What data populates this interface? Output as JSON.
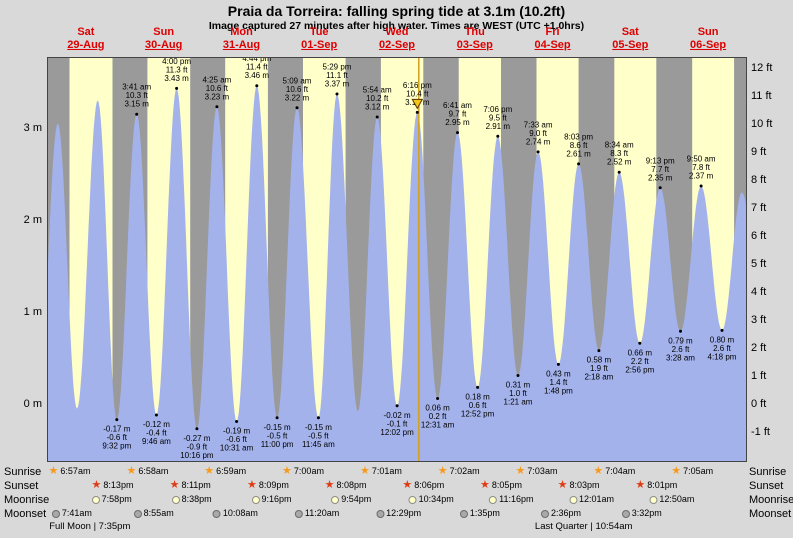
{
  "title": "Praia da Torreira: falling  spring tide at 3.1m (10.2ft)",
  "subtitle": "Image captured 27 minutes after high water. Times are WEST (UTC +1.0hrs)",
  "colors": {
    "background": "#d9d9d9",
    "night_band": "#9a9a9a",
    "day_band": "#ffffca",
    "tide_fill": "#a3b2ea",
    "header_red": "#dd0000",
    "marker_line": "#d4a017",
    "marker_triangle": "#f5c518",
    "sunrise_star": "#f59a1e",
    "sunset_star": "#e03c14",
    "moonrise_dot_bg": "#ffffc8",
    "moonrise_dot_border": "#8c8c8c",
    "moonset_dot_bg": "#a9a9a9",
    "moonset_dot_border": "#6b6b6b"
  },
  "chart_data": {
    "type": "area",
    "title": "Praia da Torreira tide curve",
    "y_axis_left_labels": [
      "3 m",
      "2 m",
      "1 m",
      "0 m"
    ],
    "y_axis_right_labels": [
      "12 ft",
      "11 ft",
      "10 ft",
      "9 ft",
      "8 ft",
      "7 ft",
      "6 ft",
      "5 ft",
      "4 ft",
      "3 ft",
      "2 ft",
      "1 ft",
      "0 ft",
      "-1 ft"
    ],
    "y_range_m": [
      -0.62,
      3.77
    ],
    "days": [
      {
        "name": "Sat",
        "date": "29-Aug"
      },
      {
        "name": "Sun",
        "date": "30-Aug"
      },
      {
        "name": "Mon",
        "date": "31-Aug"
      },
      {
        "name": "Tue",
        "date": "01-Sep"
      },
      {
        "name": "Wed",
        "date": "02-Sep"
      },
      {
        "name": "Thu",
        "date": "03-Sep"
      },
      {
        "name": "Fri",
        "date": "04-Sep"
      },
      {
        "name": "Sat",
        "date": "05-Sep"
      },
      {
        "name": "Sun",
        "date": "06-Sep"
      }
    ],
    "tide_extremes": [
      {
        "day": -1,
        "time": "21:10",
        "height_m": -0.1,
        "type": "low",
        "label_lines": null
      },
      {
        "day": 0,
        "time": "03:20",
        "height_m": 3.05,
        "type": "high",
        "label_lines": null
      },
      {
        "day": 0,
        "time": "09:15",
        "height_m": -0.05,
        "type": "low",
        "label_lines": null
      },
      {
        "day": 0,
        "time": "15:40",
        "height_m": 3.3,
        "type": "high",
        "label_lines": null
      },
      {
        "day": 0,
        "time": "21:32",
        "height_m": -0.17,
        "type": "low",
        "label_lines": [
          "-0.17 m",
          "-0.6 ft",
          "9:32 pm"
        ]
      },
      {
        "day": 1,
        "time": "03:41",
        "height_m": 3.15,
        "type": "high",
        "label_lines": [
          "3:41 am",
          "10.3 ft",
          "3.15 m"
        ]
      },
      {
        "day": 1,
        "time": "09:46",
        "height_m": -0.12,
        "type": "low",
        "label_lines": [
          "-0.12 m",
          "-0.4 ft",
          "9:46 am"
        ]
      },
      {
        "day": 1,
        "time": "16:00",
        "height_m": 3.43,
        "type": "high",
        "label_lines": [
          "4:00 pm",
          "11.3 ft",
          "3.43 m"
        ]
      },
      {
        "day": 1,
        "time": "22:16",
        "height_m": -0.27,
        "type": "low",
        "label_lines": [
          "-0.27 m",
          "-0.9 ft",
          "10:16 pm"
        ]
      },
      {
        "day": 2,
        "time": "04:25",
        "height_m": 3.23,
        "type": "high",
        "label_lines": [
          "4:25 am",
          "10.6 ft",
          "3.23 m"
        ]
      },
      {
        "day": 2,
        "time": "10:31",
        "height_m": -0.19,
        "type": "low",
        "label_lines": [
          "-0.19 m",
          "-0.6 ft",
          "10:31 am"
        ]
      },
      {
        "day": 2,
        "time": "16:44",
        "height_m": 3.46,
        "type": "high",
        "label_lines": [
          "4:44 pm",
          "11.4 ft",
          "3.46 m"
        ]
      },
      {
        "day": 2,
        "time": "23:00",
        "height_m": -0.15,
        "type": "low",
        "label_lines": [
          "-0.15 m",
          "-0.5 ft",
          "11:00 pm"
        ]
      },
      {
        "day": 3,
        "time": "05:09",
        "height_m": 3.22,
        "type": "high",
        "label_lines": [
          "5:09 am",
          "10.6 ft",
          "3.22 m"
        ]
      },
      {
        "day": 3,
        "time": "11:45",
        "height_m": -0.15,
        "type": "low",
        "label_lines": [
          "-0.15 m",
          "-0.5 ft",
          "11:45 am"
        ]
      },
      {
        "day": 3,
        "time": "17:29",
        "height_m": 3.37,
        "type": "high",
        "label_lines": [
          "5:29 pm",
          "11.1 ft",
          "3.37 m"
        ]
      },
      {
        "day": 3,
        "time": "23:55",
        "height_m": -0.08,
        "type": "low",
        "label_lines": null
      },
      {
        "day": 4,
        "time": "05:54",
        "height_m": 3.12,
        "type": "high",
        "label_lines": [
          "5:54 am",
          "10.2 ft",
          "3.12 m"
        ]
      },
      {
        "day": 4,
        "time": "12:02",
        "height_m": -0.02,
        "type": "low",
        "label_lines": [
          "-0.02 m",
          "-0.1 ft",
          "12:02 pm"
        ]
      },
      {
        "day": 4,
        "time": "18:16",
        "height_m": 3.17,
        "type": "high",
        "label_lines": [
          "6:16 pm",
          "10.4 ft",
          "3.17 m"
        ],
        "is_current": true
      },
      {
        "day": 5,
        "time": "00:31",
        "height_m": 0.06,
        "type": "low",
        "label_lines": [
          "0.06 m",
          "0.2 ft",
          "12:31 am"
        ]
      },
      {
        "day": 5,
        "time": "06:41",
        "height_m": 2.95,
        "type": "high",
        "label_lines": [
          "6:41 am",
          "9.7 ft",
          "2.95 m"
        ]
      },
      {
        "day": 5,
        "time": "12:52",
        "height_m": 0.18,
        "type": "low",
        "label_lines": [
          "0.18 m",
          "0.6 ft",
          "12:52 pm"
        ]
      },
      {
        "day": 5,
        "time": "19:06",
        "height_m": 2.91,
        "type": "high",
        "label_lines": [
          "7:06 pm",
          "9.5 ft",
          "2.91 m"
        ]
      },
      {
        "day": 6,
        "time": "01:21",
        "height_m": 0.31,
        "type": "low",
        "label_lines": [
          "0.31 m",
          "1.0 ft",
          "1:21 am"
        ]
      },
      {
        "day": 6,
        "time": "07:33",
        "height_m": 2.74,
        "type": "high",
        "label_lines": [
          "7:33 am",
          "9.0 ft",
          "2.74 m"
        ]
      },
      {
        "day": 6,
        "time": "13:48",
        "height_m": 0.43,
        "type": "low",
        "label_lines": [
          "0.43 m",
          "1.4 ft",
          "1:48 pm"
        ]
      },
      {
        "day": 6,
        "time": "20:03",
        "height_m": 2.61,
        "type": "high",
        "label_lines": [
          "8:03 pm",
          "8.6 ft",
          "2.61 m"
        ]
      },
      {
        "day": 7,
        "time": "02:18",
        "height_m": 0.58,
        "type": "low",
        "label_lines": [
          "0.58 m",
          "1.9 ft",
          "2:18 am"
        ]
      },
      {
        "day": 7,
        "time": "08:34",
        "height_m": 2.52,
        "type": "high",
        "label_lines": [
          "8:34 am",
          "8.3 ft",
          "2.52 m"
        ]
      },
      {
        "day": 7,
        "time": "14:56",
        "height_m": 0.66,
        "type": "low",
        "label_lines": [
          "0.66 m",
          "2.2 ft",
          "2:56 pm"
        ]
      },
      {
        "day": 7,
        "time": "21:13",
        "height_m": 2.35,
        "type": "high",
        "label_lines": [
          "9:13 pm",
          "7.7 ft",
          "2.35 m"
        ]
      },
      {
        "day": 8,
        "time": "03:28",
        "height_m": 0.79,
        "type": "low",
        "label_lines": [
          "0.79 m",
          "2.6 ft",
          "3:28 am"
        ]
      },
      {
        "day": 8,
        "time": "09:50",
        "height_m": 2.37,
        "type": "high",
        "label_lines": [
          "9:50 am",
          "7.8 ft",
          "2.37 m"
        ]
      },
      {
        "day": 8,
        "time": "16:18",
        "height_m": 0.8,
        "type": "low",
        "label_lines": [
          "0.80 m",
          "2.6 ft",
          "4:18 pm"
        ]
      },
      {
        "day": 8,
        "time": "22:25",
        "height_m": 2.3,
        "type": "high",
        "label_lines": null
      },
      {
        "day": 9,
        "time": "04:50",
        "height_m": 0.9,
        "type": "low",
        "label_lines": null
      }
    ],
    "current_marker": {
      "day": 4,
      "time": "18:43"
    },
    "sun_moon_rows": [
      {
        "id": "sunrise",
        "label": "Sunrise",
        "icon": "sun-star",
        "entries": [
          {
            "day": 0,
            "time": "6:57am"
          },
          {
            "day": 1,
            "time": "6:58am"
          },
          {
            "day": 2,
            "time": "6:59am"
          },
          {
            "day": 3,
            "time": "7:00am"
          },
          {
            "day": 4,
            "time": "7:01am"
          },
          {
            "day": 5,
            "time": "7:02am"
          },
          {
            "day": 6,
            "time": "7:03am"
          },
          {
            "day": 7,
            "time": "7:04am"
          },
          {
            "day": 8,
            "time": "7:05am"
          }
        ]
      },
      {
        "id": "sunset",
        "label": "Sunset",
        "icon": "sun-star",
        "entries": [
          {
            "day": 0,
            "time": "8:13pm"
          },
          {
            "day": 1,
            "time": "8:11pm"
          },
          {
            "day": 2,
            "time": "8:09pm"
          },
          {
            "day": 3,
            "time": "8:08pm"
          },
          {
            "day": 4,
            "time": "8:06pm"
          },
          {
            "day": 5,
            "time": "8:05pm"
          },
          {
            "day": 6,
            "time": "8:03pm"
          },
          {
            "day": 7,
            "time": "8:01pm"
          }
        ]
      },
      {
        "id": "moonrise",
        "label": "Moonrise",
        "icon": "moon-dot",
        "entries": [
          {
            "day": 0,
            "time": "7:58pm"
          },
          {
            "day": 1,
            "time": "8:38pm"
          },
          {
            "day": 2,
            "time": "9:16pm"
          },
          {
            "day": 3,
            "time": "9:54pm"
          },
          {
            "day": 4,
            "time": "10:34pm"
          },
          {
            "day": 5,
            "time": "11:16pm"
          },
          {
            "day": 7,
            "time": "12:01am"
          },
          {
            "day": 8,
            "time": "12:50am"
          }
        ]
      },
      {
        "id": "moonset",
        "label": "Moonset",
        "icon": "moon-dot",
        "entries": [
          {
            "day": 0,
            "time": "7:41am"
          },
          {
            "day": 1,
            "time": "8:55am"
          },
          {
            "day": 2,
            "time": "10:08am"
          },
          {
            "day": 3,
            "time": "11:20am"
          },
          {
            "day": 4,
            "time": "12:29pm"
          },
          {
            "day": 5,
            "time": "1:35pm"
          },
          {
            "day": 6,
            "time": "2:36pm"
          },
          {
            "day": 7,
            "time": "3:32pm"
          }
        ]
      }
    ],
    "moon_phases": [
      {
        "label": "Full Moon | 7:35pm",
        "day_position": 0.55
      },
      {
        "label": "Last Quarter | 10:54am",
        "day_position": 6.9
      }
    ]
  }
}
